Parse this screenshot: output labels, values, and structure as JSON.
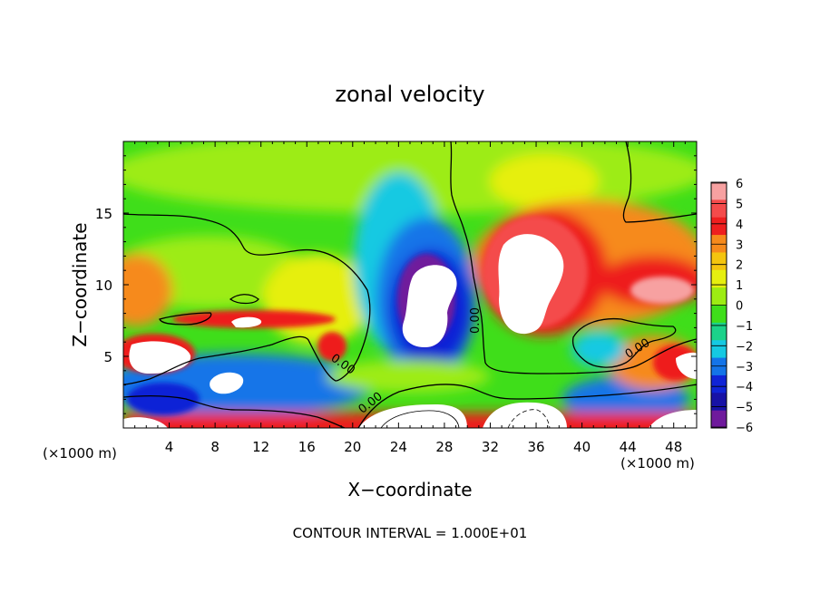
{
  "chart_data": {
    "type": "heatmap",
    "title": "zonal velocity",
    "xlabel": "X−coordinate",
    "ylabel": "Z−coordinate",
    "x_unit_left": "(×1000 m)",
    "x_unit_right": "(×1000 m)",
    "footer": "CONTOUR INTERVAL = 1.000E+01",
    "xlim": [
      0,
      50
    ],
    "ylim": [
      0,
      20
    ],
    "x_ticks": [
      "4",
      "8",
      "12",
      "16",
      "20",
      "24",
      "28",
      "32",
      "36",
      "40",
      "44",
      "48"
    ],
    "y_ticks": [
      "5",
      "10",
      "15"
    ],
    "x_tick_values": [
      4,
      8,
      12,
      16,
      20,
      24,
      28,
      32,
      36,
      40,
      44,
      48
    ],
    "y_tick_values": [
      5,
      10,
      15
    ],
    "colorbar": {
      "labels": [
        "6",
        "5",
        "4",
        "3",
        "2",
        "1",
        "0",
        "−1",
        "−2",
        "−3",
        "−4",
        "−5",
        "−6"
      ],
      "colors": [
        "#f7a1a1",
        "#f44b4b",
        "#ee1f1f",
        "#f68a1c",
        "#f4c50f",
        "#e6ef0f",
        "#9dec13",
        "#3fde1a",
        "#1bd28a",
        "#15c9e2",
        "#1474e8",
        "#1024d6",
        "#1812a6",
        "#6f1a9c"
      ]
    },
    "contour_labels": [
      {
        "text": "0.00",
        "x": 19.2,
        "y": 4.5,
        "angle": 35
      },
      {
        "text": "0.00",
        "x": 21.5,
        "y": 1.8,
        "angle": -38
      },
      {
        "text": "0.00",
        "x": 30.6,
        "y": 7.5,
        "angle": -90
      },
      {
        "text": "0.00",
        "x": 44.8,
        "y": 5.6,
        "angle": -32
      }
    ],
    "features": [
      {
        "kind": "max",
        "x": 35.5,
        "y": 10.0,
        "rx": 3.4,
        "ry": 3.2,
        "value": 6.5
      },
      {
        "kind": "max",
        "x": 10.0,
        "y": 3.2,
        "rx": 1.6,
        "ry": 0.9,
        "value": 6
      },
      {
        "kind": "max",
        "x": 3.5,
        "y": 5.0,
        "rx": 3.0,
        "ry": 1.0,
        "value": 6
      },
      {
        "kind": "max",
        "x": 18.0,
        "y": 5.6,
        "rx": 1.2,
        "ry": 1.0,
        "value": 5
      },
      {
        "kind": "max",
        "x": 26.0,
        "y": 1.0,
        "rx": 5.0,
        "ry": 1.5,
        "value": 6
      },
      {
        "kind": "max",
        "x": 36.5,
        "y": 1.0,
        "rx": 4.5,
        "ry": 1.5,
        "value": 6
      },
      {
        "kind": "max",
        "x": 47.0,
        "y": 1.0,
        "rx": 3.0,
        "ry": 1.0,
        "value": 6
      },
      {
        "kind": "max",
        "x": 1.5,
        "y": 1.2,
        "rx": 1.8,
        "ry": 1.0,
        "value": 6
      },
      {
        "kind": "max",
        "x": 9.5,
        "y": 7.5,
        "rx": 3.0,
        "ry": 0.7,
        "value": 5
      },
      {
        "kind": "max",
        "x": 15.0,
        "y": 7.8,
        "rx": 2.5,
        "ry": 0.5,
        "value": 4
      },
      {
        "kind": "max",
        "x": 46.0,
        "y": 4.5,
        "rx": 3.5,
        "ry": 1.8,
        "value": 4
      },
      {
        "kind": "max",
        "x": 46.5,
        "y": 10.0,
        "rx": 4.5,
        "ry": 1.5,
        "value": 5
      },
      {
        "kind": "max",
        "x": 1.5,
        "y": 9.5,
        "rx": 2.5,
        "ry": 2.0,
        "value": 3
      },
      {
        "kind": "min",
        "x": 27.0,
        "y": 8.5,
        "rx": 3.0,
        "ry": 4.0,
        "value": -6
      },
      {
        "kind": "min",
        "x": 10.0,
        "y": 3.0,
        "rx": 4.0,
        "ry": 1.8,
        "value": -4
      },
      {
        "kind": "min",
        "x": 5.0,
        "y": 1.8,
        "rx": 2.5,
        "ry": 1.0,
        "value": -4
      },
      {
        "kind": "min",
        "x": 43.0,
        "y": 1.5,
        "rx": 2.0,
        "ry": 1.0,
        "value": -4
      },
      {
        "kind": "min",
        "x": 42.0,
        "y": 5.5,
        "rx": 2.0,
        "ry": 1.2,
        "value": -3
      },
      {
        "kind": "min",
        "x": 20.0,
        "y": 3.0,
        "rx": 1.5,
        "ry": 1.5,
        "value": -3
      }
    ]
  }
}
